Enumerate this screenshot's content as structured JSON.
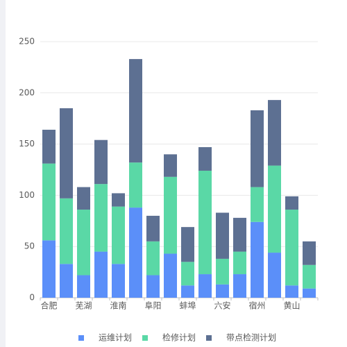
{
  "chart_data": {
    "type": "stacked_bar",
    "categories": [
      "合肥",
      null,
      "芜湖",
      null,
      "淮南",
      null,
      "阜阳",
      null,
      "蚌埠",
      null,
      "六安",
      null,
      "宿州",
      null,
      "黄山",
      null
    ],
    "series": [
      {
        "name": "运维计划",
        "color": "#5b8ff9",
        "values": [
          56,
          33,
          22,
          45,
          33,
          88,
          22,
          43,
          12,
          23,
          13,
          23,
          74,
          44,
          12,
          9
        ]
      },
      {
        "name": "检修计划",
        "color": "#5ad8a6",
        "values": [
          75,
          64,
          64,
          66,
          56,
          44,
          33,
          75,
          23,
          101,
          25,
          22,
          34,
          85,
          74,
          23
        ]
      },
      {
        "name": "带点检测计划",
        "color": "#5d7092",
        "values": [
          33,
          88,
          22,
          43,
          13,
          101,
          25,
          22,
          34,
          23,
          45,
          33,
          75,
          64,
          13,
          23
        ]
      }
    ],
    "ylim": [
      0,
      250
    ],
    "yticks": [
      0,
      50,
      100,
      150,
      200,
      250
    ],
    "grid": true,
    "legend": "bottom"
  }
}
